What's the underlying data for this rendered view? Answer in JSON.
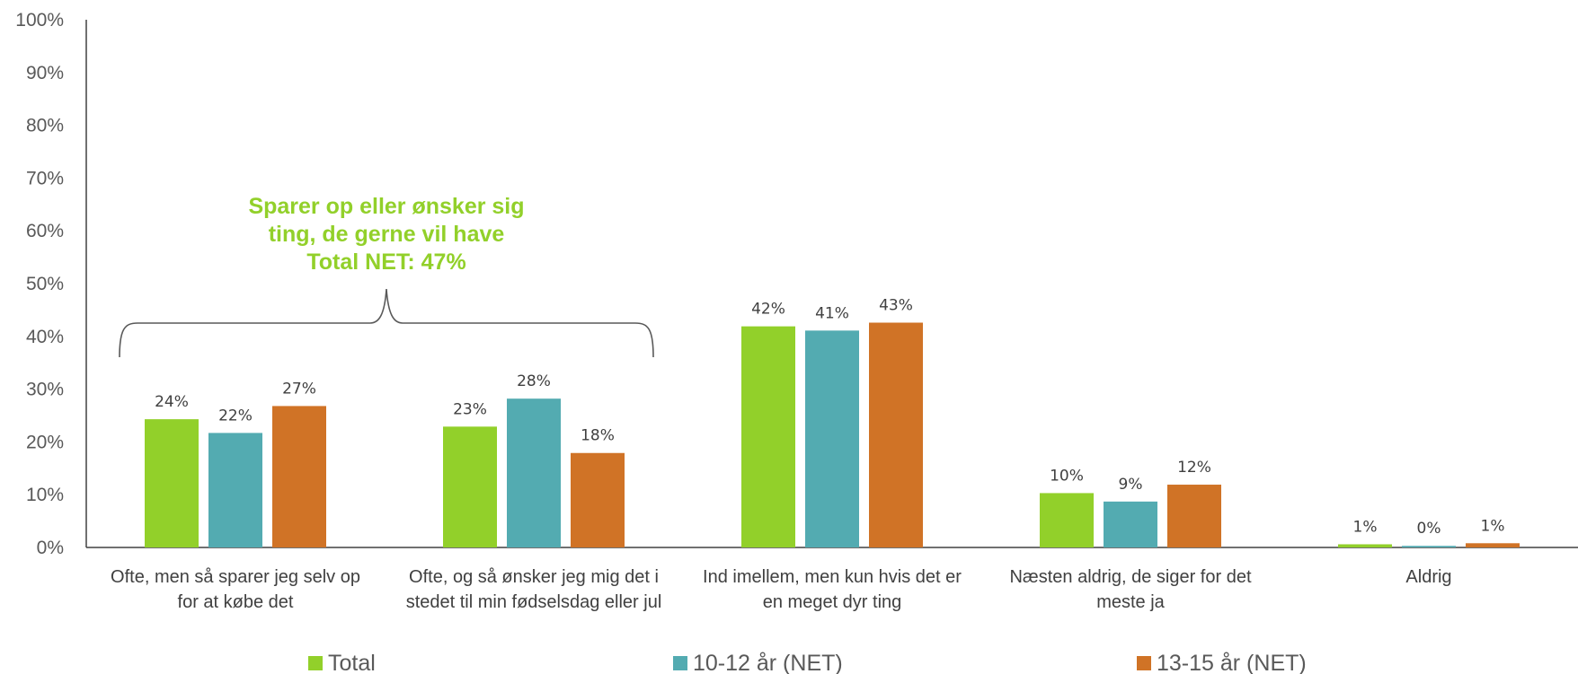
{
  "chart_data": {
    "type": "bar",
    "categories": [
      [
        "Ofte, men så sparer jeg selv op",
        "for at købe det"
      ],
      [
        "Ofte, og så ønsker jeg mig det i",
        "stedet til min fødselsdag eller jul"
      ],
      [
        "Ind imellem, men kun hvis det er",
        "en meget dyr ting"
      ],
      [
        "Næsten aldrig, de siger for det",
        "meste ja"
      ],
      [
        "Aldrig"
      ]
    ],
    "series": [
      {
        "name": "Total",
        "color": "#92d02a",
        "values": [
          24,
          23,
          42,
          10,
          1
        ],
        "bar_values": [
          24.3,
          22.9,
          41.9,
          10.3,
          0.6
        ]
      },
      {
        "name": "10-12 år (NET)",
        "color": "#53abb1",
        "values": [
          22,
          28,
          41,
          9,
          0
        ],
        "bar_values": [
          21.7,
          28.2,
          41.1,
          8.7,
          0.3
        ]
      },
      {
        "name": "13-15 år (NET)",
        "color": "#d07326",
        "values": [
          27,
          18,
          43,
          12,
          1
        ],
        "bar_values": [
          26.8,
          17.9,
          42.6,
          11.9,
          0.8
        ]
      }
    ],
    "data_labels": [
      [
        "24%",
        "23%",
        "42%",
        "10%",
        "1%"
      ],
      [
        "22%",
        "28%",
        "41%",
        "9%",
        "0%"
      ],
      [
        "27%",
        "18%",
        "43%",
        "12%",
        "1%"
      ]
    ],
    "yticks": [
      "0%",
      "10%",
      "20%",
      "30%",
      "40%",
      "50%",
      "60%",
      "70%",
      "80%",
      "90%",
      "100%"
    ],
    "ylim": [
      0,
      100
    ],
    "grid": false,
    "legend": "bottom",
    "annotation": {
      "lines": [
        "Sparer op eller ønsker sig",
        "ting, de gerne vil have",
        "Total NET: 47%"
      ],
      "color": "#92d02a",
      "spans_categories": [
        0,
        1
      ]
    }
  }
}
